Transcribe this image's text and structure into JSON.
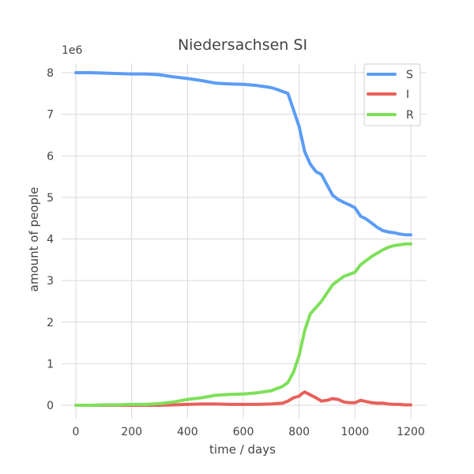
{
  "chart_data": {
    "type": "line",
    "title": "Niedersachsen SI",
    "xlabel": "time / days",
    "ylabel": "amount of people",
    "y_scale_label": "1e6",
    "xlim": [
      0,
      1200
    ],
    "ylim": [
      0,
      8
    ],
    "x_ticks": [
      0,
      200,
      400,
      600,
      800,
      1000,
      1200
    ],
    "y_ticks": [
      0,
      1,
      2,
      3,
      4,
      5,
      6,
      7,
      8
    ],
    "grid": true,
    "legend_position": "top-right",
    "x": [
      0,
      50,
      100,
      150,
      200,
      250,
      300,
      350,
      400,
      450,
      500,
      550,
      600,
      650,
      700,
      720,
      740,
      760,
      780,
      790,
      800,
      810,
      820,
      840,
      860,
      880,
      900,
      920,
      940,
      960,
      980,
      1000,
      1020,
      1040,
      1060,
      1080,
      1100,
      1120,
      1140,
      1160,
      1180,
      1200
    ],
    "series": [
      {
        "name": "S",
        "color": "#5b9cf6",
        "values": [
          8.0,
          8.0,
          7.99,
          7.98,
          7.97,
          7.97,
          7.95,
          7.9,
          7.86,
          7.81,
          7.75,
          7.73,
          7.72,
          7.69,
          7.64,
          7.6,
          7.55,
          7.5,
          7.1,
          6.9,
          6.7,
          6.4,
          6.1,
          5.8,
          5.62,
          5.55,
          5.3,
          5.05,
          4.95,
          4.88,
          4.82,
          4.75,
          4.55,
          4.48,
          4.38,
          4.28,
          4.2,
          4.17,
          4.15,
          4.12,
          4.1,
          4.1
        ]
      },
      {
        "name": "I",
        "color": "#e8605a",
        "values": [
          0.0,
          0.0,
          0.0,
          0.0,
          0.0,
          0.0,
          0.0,
          0.01,
          0.02,
          0.03,
          0.03,
          0.02,
          0.02,
          0.02,
          0.03,
          0.04,
          0.05,
          0.1,
          0.18,
          0.2,
          0.22,
          0.28,
          0.32,
          0.25,
          0.18,
          0.1,
          0.12,
          0.16,
          0.14,
          0.08,
          0.06,
          0.06,
          0.12,
          0.09,
          0.06,
          0.05,
          0.05,
          0.03,
          0.02,
          0.02,
          0.01,
          0.01
        ]
      },
      {
        "name": "R",
        "color": "#7ee05a",
        "values": [
          0.0,
          0.0,
          0.01,
          0.01,
          0.02,
          0.02,
          0.04,
          0.08,
          0.14,
          0.18,
          0.24,
          0.26,
          0.27,
          0.3,
          0.35,
          0.4,
          0.45,
          0.55,
          0.8,
          1.0,
          1.2,
          1.5,
          1.8,
          2.2,
          2.35,
          2.5,
          2.7,
          2.9,
          3.0,
          3.1,
          3.15,
          3.2,
          3.38,
          3.48,
          3.58,
          3.66,
          3.74,
          3.8,
          3.84,
          3.86,
          3.88,
          3.88
        ]
      }
    ]
  }
}
